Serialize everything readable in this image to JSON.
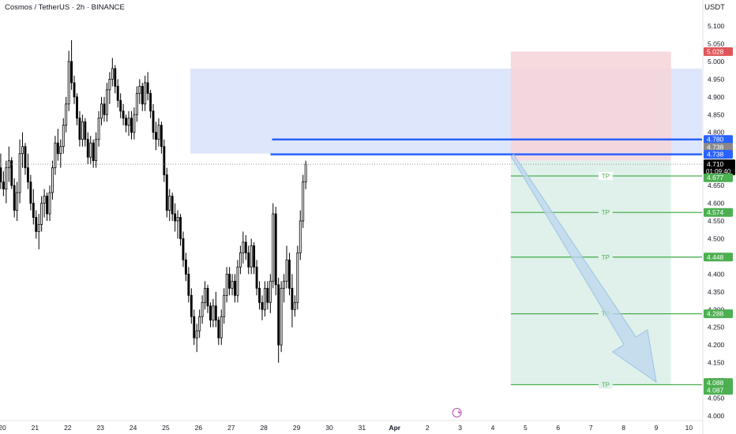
{
  "header": {
    "symbol_title": "Cosmos / TetherUS · 2h · BINANCE",
    "currency": "USDT"
  },
  "colors": {
    "up_candle": "#ffffff",
    "down_candle": "#000000",
    "candle_outline": "#000000",
    "zone_blue": "#dde6fb",
    "stop_zone": "#f6d4d8",
    "target_zone": "#dff1ea",
    "resistance_line": "#2962ff",
    "tp_line": "#4caf50",
    "stop_badge": "#e05559",
    "last_price_badge": "#000000",
    "arrow_fill": "#bcd6ee"
  },
  "chart_data": {
    "type": "candlestick",
    "ylim": [
      4.0,
      5.15
    ],
    "y_ticks": [
      "5.100",
      "5.050",
      "5.000",
      "4.950",
      "4.900",
      "4.850",
      "4.800",
      "4.750",
      "4.700",
      "4.650",
      "4.600",
      "4.550",
      "4.500",
      "4.450",
      "4.400",
      "4.350",
      "4.300",
      "4.250",
      "4.200",
      "4.150",
      "4.100",
      "4.050",
      "4.000"
    ],
    "x_ticks": [
      "20",
      "21",
      "22",
      "23",
      "24",
      "25",
      "26",
      "27",
      "28",
      "29",
      "30",
      "31",
      "Apr",
      "2",
      "3",
      "4",
      "5",
      "6",
      "7",
      "8",
      "9",
      "10"
    ],
    "price_labels": {
      "stop": "5.028",
      "resistance_high": "4.780",
      "resistance_mid": "4.738",
      "resistance_low": "4.738",
      "last_price": "4.710",
      "countdown": "01:09:40",
      "tp1": "4.677",
      "tp2": "4.574",
      "tp3": "4.448",
      "tp4": "4.288",
      "tp5": "4.088",
      "tp5b": "4.087"
    },
    "levels": {
      "stop": 5.028,
      "resistance_high": 4.78,
      "resistance_low": 4.738,
      "last_price": 4.71,
      "targets": [
        4.677,
        4.574,
        4.448,
        4.288,
        4.088
      ]
    },
    "tp_label": "TP",
    "blue_zone": {
      "top": 4.98,
      "bottom": 4.74
    },
    "position_zone": {
      "entry": 4.72,
      "stop": 5.028,
      "target": 4.088
    },
    "candle_day_start": 19.95,
    "candle_step_days": 0.0833,
    "candles": [
      [
        4.7,
        4.74,
        4.64,
        4.66
      ],
      [
        4.66,
        4.69,
        4.62,
        4.64
      ],
      [
        4.64,
        4.72,
        4.6,
        4.7
      ],
      [
        4.7,
        4.76,
        4.66,
        4.72
      ],
      [
        4.72,
        4.73,
        4.64,
        4.65
      ],
      [
        4.65,
        4.67,
        4.56,
        4.58
      ],
      [
        4.58,
        4.66,
        4.55,
        4.63
      ],
      [
        4.63,
        4.78,
        4.6,
        4.74
      ],
      [
        4.74,
        4.8,
        4.7,
        4.76
      ],
      [
        4.76,
        4.77,
        4.68,
        4.7
      ],
      [
        4.7,
        4.74,
        4.64,
        4.66
      ],
      [
        4.66,
        4.68,
        4.58,
        4.6
      ],
      [
        4.6,
        4.64,
        4.54,
        4.56
      ],
      [
        4.56,
        4.58,
        4.5,
        4.52
      ],
      [
        4.52,
        4.57,
        4.47,
        4.54
      ],
      [
        4.54,
        4.62,
        4.52,
        4.6
      ],
      [
        4.6,
        4.64,
        4.56,
        4.62
      ],
      [
        4.62,
        4.63,
        4.55,
        4.57
      ],
      [
        4.57,
        4.65,
        4.55,
        4.63
      ],
      [
        4.63,
        4.72,
        4.61,
        4.7
      ],
      [
        4.7,
        4.79,
        4.68,
        4.77
      ],
      [
        4.77,
        4.81,
        4.72,
        4.74
      ],
      [
        4.74,
        4.78,
        4.7,
        4.76
      ],
      [
        4.76,
        4.84,
        4.74,
        4.82
      ],
      [
        4.82,
        4.9,
        4.8,
        4.88
      ],
      [
        4.88,
        5.03,
        4.86,
        5.0
      ],
      [
        5.0,
        5.06,
        4.92,
        4.94
      ],
      [
        4.94,
        4.96,
        4.88,
        4.9
      ],
      [
        4.9,
        4.91,
        4.82,
        4.84
      ],
      [
        4.84,
        4.86,
        4.76,
        4.78
      ],
      [
        4.78,
        4.85,
        4.76,
        4.83
      ],
      [
        4.83,
        4.84,
        4.76,
        4.78
      ],
      [
        4.78,
        4.8,
        4.71,
        4.73
      ],
      [
        4.73,
        4.79,
        4.71,
        4.77
      ],
      [
        4.77,
        4.78,
        4.7,
        4.72
      ],
      [
        4.72,
        4.8,
        4.7,
        4.78
      ],
      [
        4.78,
        4.86,
        4.76,
        4.84
      ],
      [
        4.84,
        4.9,
        4.82,
        4.88
      ],
      [
        4.88,
        4.9,
        4.83,
        4.85
      ],
      [
        4.85,
        4.94,
        4.83,
        4.92
      ],
      [
        4.92,
        4.97,
        4.88,
        4.95
      ],
      [
        4.95,
        5.01,
        4.93,
        4.98
      ],
      [
        4.98,
        4.99,
        4.91,
        4.93
      ],
      [
        4.93,
        4.95,
        4.87,
        4.89
      ],
      [
        4.89,
        4.91,
        4.84,
        4.86
      ],
      [
        4.86,
        4.88,
        4.82,
        4.84
      ],
      [
        4.84,
        4.85,
        4.8,
        4.82
      ],
      [
        4.82,
        4.86,
        4.79,
        4.84
      ],
      [
        4.84,
        4.86,
        4.78,
        4.8
      ],
      [
        4.8,
        4.87,
        4.78,
        4.85
      ],
      [
        4.85,
        4.93,
        4.83,
        4.91
      ],
      [
        4.91,
        4.95,
        4.88,
        4.93
      ],
      [
        4.93,
        4.94,
        4.86,
        4.88
      ],
      [
        4.88,
        4.96,
        4.86,
        4.94
      ],
      [
        4.94,
        4.97,
        4.89,
        4.91
      ],
      [
        4.91,
        4.92,
        4.84,
        4.86
      ],
      [
        4.86,
        4.88,
        4.78,
        4.8
      ],
      [
        4.8,
        4.83,
        4.75,
        4.78
      ],
      [
        4.78,
        4.84,
        4.76,
        4.82
      ],
      [
        4.82,
        4.83,
        4.74,
        4.76
      ],
      [
        4.76,
        4.78,
        4.66,
        4.68
      ],
      [
        4.68,
        4.7,
        4.56,
        4.58
      ],
      [
        4.58,
        4.64,
        4.55,
        4.62
      ],
      [
        4.62,
        4.63,
        4.55,
        4.57
      ],
      [
        4.57,
        4.6,
        4.52,
        4.55
      ],
      [
        4.55,
        4.58,
        4.5,
        4.56
      ],
      [
        4.56,
        4.57,
        4.48,
        4.5
      ],
      [
        4.5,
        4.52,
        4.42,
        4.44
      ],
      [
        4.44,
        4.46,
        4.38,
        4.4
      ],
      [
        4.4,
        4.42,
        4.32,
        4.34
      ],
      [
        4.34,
        4.36,
        4.26,
        4.28
      ],
      [
        4.28,
        4.3,
        4.2,
        4.22
      ],
      [
        4.22,
        4.26,
        4.18,
        4.24
      ],
      [
        4.24,
        4.3,
        4.22,
        4.28
      ],
      [
        4.28,
        4.34,
        4.26,
        4.32
      ],
      [
        4.32,
        4.38,
        4.3,
        4.36
      ],
      [
        4.36,
        4.37,
        4.29,
        4.31
      ],
      [
        4.31,
        4.32,
        4.25,
        4.27
      ],
      [
        4.27,
        4.33,
        4.25,
        4.31
      ],
      [
        4.31,
        4.35,
        4.25,
        4.27
      ],
      [
        4.27,
        4.28,
        4.2,
        4.22
      ],
      [
        4.22,
        4.3,
        4.2,
        4.28
      ],
      [
        4.28,
        4.36,
        4.26,
        4.34
      ],
      [
        4.34,
        4.42,
        4.32,
        4.4
      ],
      [
        4.4,
        4.42,
        4.34,
        4.36
      ],
      [
        4.36,
        4.4,
        4.34,
        4.38
      ],
      [
        4.38,
        4.4,
        4.32,
        4.34
      ],
      [
        4.34,
        4.44,
        4.32,
        4.42
      ],
      [
        4.42,
        4.48,
        4.4,
        4.46
      ],
      [
        4.46,
        4.52,
        4.43,
        4.49
      ],
      [
        4.49,
        4.51,
        4.44,
        4.46
      ],
      [
        4.46,
        4.48,
        4.4,
        4.42
      ],
      [
        4.42,
        4.5,
        4.4,
        4.48
      ],
      [
        4.48,
        4.49,
        4.4,
        4.42
      ],
      [
        4.42,
        4.44,
        4.34,
        4.36
      ],
      [
        4.36,
        4.38,
        4.3,
        4.32
      ],
      [
        4.32,
        4.34,
        4.27,
        4.3
      ],
      [
        4.3,
        4.38,
        4.28,
        4.36
      ],
      [
        4.36,
        4.38,
        4.3,
        4.32
      ],
      [
        4.32,
        4.4,
        4.29,
        4.38
      ],
      [
        4.38,
        4.6,
        4.36,
        4.57
      ],
      [
        4.57,
        4.59,
        4.34,
        4.37
      ],
      [
        4.37,
        4.39,
        4.15,
        4.2
      ],
      [
        4.2,
        4.38,
        4.18,
        4.36
      ],
      [
        4.36,
        4.4,
        4.32,
        4.38
      ],
      [
        4.38,
        4.48,
        4.36,
        4.44
      ],
      [
        4.44,
        4.46,
        4.34,
        4.36
      ],
      [
        4.36,
        4.4,
        4.25,
        4.3
      ],
      [
        4.3,
        4.34,
        4.28,
        4.32
      ],
      [
        4.32,
        4.48,
        4.3,
        4.46
      ],
      [
        4.46,
        4.58,
        4.44,
        4.55
      ],
      [
        4.55,
        4.68,
        4.53,
        4.66
      ],
      [
        4.66,
        4.72,
        4.64,
        4.71
      ]
    ]
  }
}
